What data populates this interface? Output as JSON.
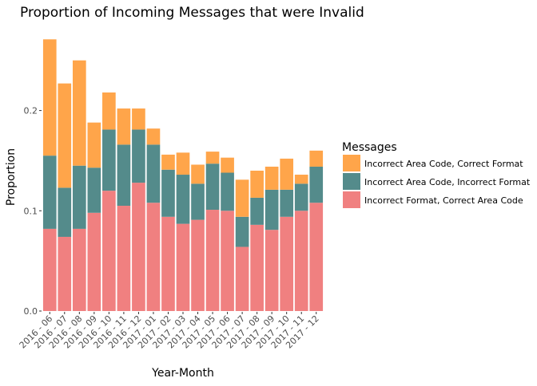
{
  "chart_data": {
    "type": "bar",
    "stacked": true,
    "title": "Proportion of Incoming Messages that were Invalid",
    "xlabel": "Year-Month",
    "ylabel": "Proportion",
    "ylim": [
      0,
      0.28
    ],
    "yticks": [
      0.0,
      0.1,
      0.2
    ],
    "ytick_labels": [
      "0.0",
      "0.1",
      "0.2"
    ],
    "grid": false,
    "legend": {
      "title": "Messages",
      "position": "right",
      "entries": [
        {
          "label": "Incorrect Area Code, Correct Format",
          "color": "#FFA54A"
        },
        {
          "label": "Incorrect Area Code, Incorrect Format",
          "color": "#548B8B"
        },
        {
          "label": "Incorrect Format, Correct Area Code",
          "color": "#F08080"
        }
      ]
    },
    "categories": [
      "2016 - 06",
      "2016 - 07",
      "2016 - 08",
      "2016 - 09",
      "2016 - 10",
      "2016 - 11",
      "2016 - 12",
      "2017 - 01",
      "2017 - 02",
      "2017 - 03",
      "2017 - 04",
      "2017 - 05",
      "2017 - 06",
      "2017 - 07",
      "2017 - 08",
      "2017 - 09",
      "2017 - 10",
      "2017 - 11",
      "2017 - 12"
    ],
    "series": [
      {
        "name": "Incorrect Format, Correct Area Code",
        "color": "#F08080",
        "values": [
          0.082,
          0.074,
          0.082,
          0.098,
          0.12,
          0.105,
          0.128,
          0.108,
          0.094,
          0.087,
          0.091,
          0.101,
          0.1,
          0.064,
          0.086,
          0.081,
          0.094,
          0.1,
          0.108
        ]
      },
      {
        "name": "Incorrect Area Code, Incorrect Format",
        "color": "#548B8B",
        "values": [
          0.073,
          0.049,
          0.063,
          0.045,
          0.061,
          0.061,
          0.053,
          0.058,
          0.047,
          0.049,
          0.036,
          0.046,
          0.038,
          0.03,
          0.027,
          0.04,
          0.027,
          0.027,
          0.036
        ]
      },
      {
        "name": "Incorrect Area Code, Correct Format",
        "color": "#FFA54A",
        "values": [
          0.116,
          0.104,
          0.105,
          0.045,
          0.037,
          0.036,
          0.021,
          0.016,
          0.015,
          0.022,
          0.019,
          0.012,
          0.015,
          0.037,
          0.027,
          0.023,
          0.031,
          0.009,
          0.016
        ]
      }
    ]
  }
}
